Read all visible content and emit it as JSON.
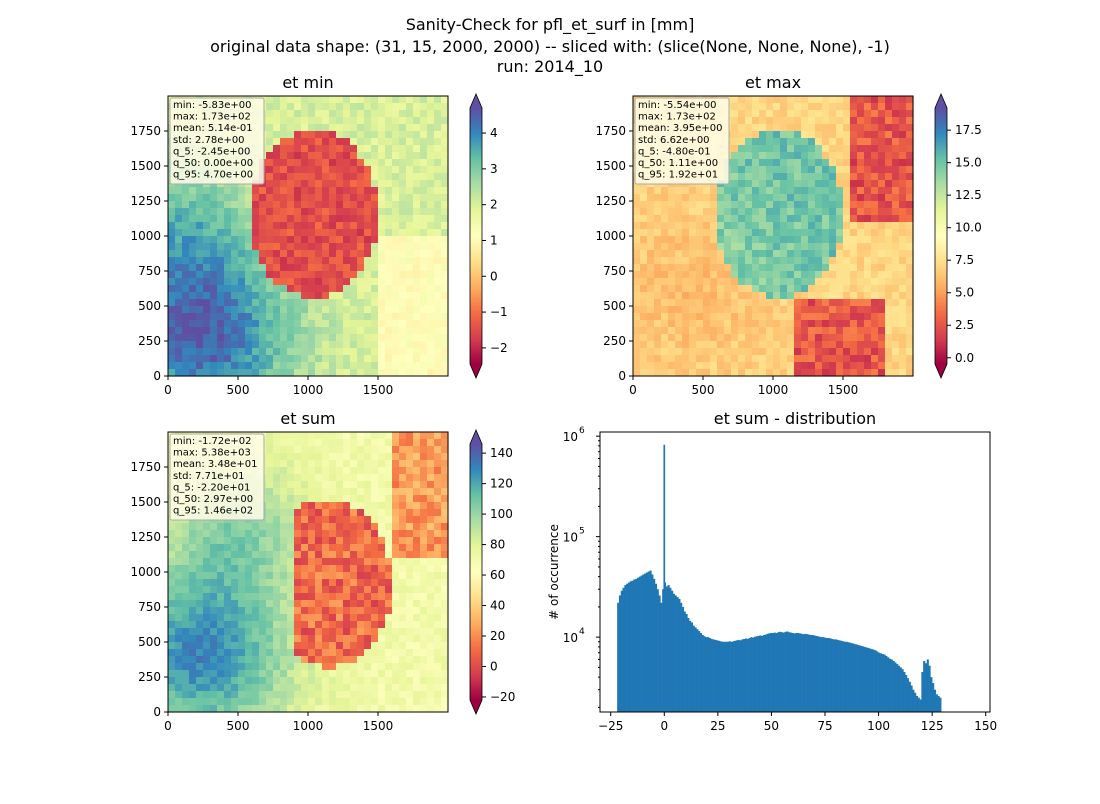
{
  "figure": {
    "title_lines": [
      "Sanity-Check for pfl_et_surf in [mm]",
      "original data shape: (31, 15, 2000, 2000) -- sliced with: (slice(None, None, None), -1)",
      "run: 2014_10"
    ]
  },
  "colors": {
    "spectral": [
      "#9e0142",
      "#d53e4f",
      "#f46d43",
      "#fdae61",
      "#fee08b",
      "#ffffbf",
      "#e6f598",
      "#abdda4",
      "#66c2a5",
      "#3288bd",
      "#5e4fa2"
    ],
    "hist_bar": "#1f77b4"
  },
  "chart_data": [
    {
      "type": "heatmap",
      "title": "et min",
      "colormap": "Spectral",
      "x_ticks": [
        "0",
        "500",
        "1000",
        "1500"
      ],
      "y_ticks": [
        "0",
        "250",
        "500",
        "750",
        "1000",
        "1250",
        "1500",
        "1750"
      ],
      "xlim": [
        0,
        2000
      ],
      "ylim": [
        0,
        2000
      ],
      "colorbar_range": [
        -2.45,
        4.7
      ],
      "colorbar_ticks": [
        "4",
        "3",
        "2",
        "1",
        "0",
        "−1",
        "−2"
      ],
      "colorbar_values": [
        4,
        3,
        2,
        1,
        0,
        -1,
        -2
      ],
      "stats": [
        "min: -5.83e+00",
        "max: 1.73e+02",
        "mean: 5.14e-01",
        "std: 2.78e+00",
        "q_5: -2.45e+00",
        "q_50: 0.00e+00",
        "q_95: 4.70e+00"
      ]
    },
    {
      "type": "heatmap",
      "title": "et max",
      "colormap": "Spectral",
      "x_ticks": [
        "0",
        "500",
        "1000",
        "1500"
      ],
      "y_ticks": [
        "0",
        "250",
        "500",
        "750",
        "1000",
        "1250",
        "1500",
        "1750"
      ],
      "xlim": [
        0,
        2000
      ],
      "ylim": [
        0,
        2000
      ],
      "colorbar_range": [
        -0.48,
        19.2
      ],
      "colorbar_ticks": [
        "17.5",
        "15.0",
        "12.5",
        "10.0",
        "7.5",
        "5.0",
        "2.5",
        "0.0"
      ],
      "colorbar_values": [
        17.5,
        15,
        12.5,
        10,
        7.5,
        5,
        2.5,
        0
      ],
      "stats": [
        "min: -5.54e+00",
        "max: 1.73e+02",
        "mean: 3.95e+00",
        "std: 6.62e+00",
        "q_5: -4.80e-01",
        "q_50: 1.11e+00",
        "q_95: 1.92e+01"
      ]
    },
    {
      "type": "heatmap",
      "title": "et sum",
      "colormap": "Spectral",
      "x_ticks": [
        "0",
        "500",
        "1000",
        "1500"
      ],
      "y_ticks": [
        "0",
        "250",
        "500",
        "750",
        "1000",
        "1250",
        "1500",
        "1750"
      ],
      "xlim": [
        0,
        2000
      ],
      "ylim": [
        0,
        2000
      ],
      "colorbar_range": [
        -22.0,
        146.0
      ],
      "colorbar_ticks": [
        "140",
        "120",
        "100",
        "80",
        "60",
        "40",
        "20",
        "0",
        "−20"
      ],
      "colorbar_values": [
        140,
        120,
        100,
        80,
        60,
        40,
        20,
        0,
        -20
      ],
      "stats": [
        "min: -1.72e+02",
        "max: 5.38e+03",
        "mean: 3.48e+01",
        "std: 7.71e+01",
        "q_5: -2.20e+01",
        "q_50: 2.97e+00",
        "q_95: 1.46e+02"
      ]
    },
    {
      "type": "bar",
      "title": "et sum - distribution",
      "ylabel": "# of occurrence",
      "yscale": "log",
      "ylim": [
        1800,
        1100000
      ],
      "xlim": [
        -30,
        152
      ],
      "x_ticks": [
        "−25",
        "0",
        "25",
        "50",
        "75",
        "100",
        "125",
        "150"
      ],
      "x_tick_values": [
        -25,
        0,
        25,
        50,
        75,
        100,
        125,
        150
      ],
      "y_ticks": [
        "10",
        "10",
        "10"
      ],
      "y_tick_exponents": [
        "4",
        "5",
        "6"
      ],
      "y_tick_values": [
        10000,
        100000,
        1000000
      ],
      "bin_start": -22,
      "bin_width": 0.84,
      "spike": {
        "x": 0,
        "value": 820000
      },
      "counts": [
        22000,
        26000,
        29000,
        31000,
        33000,
        34000,
        35000,
        36000,
        36500,
        37500,
        38000,
        39000,
        40000,
        41000,
        42000,
        43000,
        44000,
        45000,
        46000,
        42000,
        38000,
        34000,
        30000,
        26000,
        22000,
        30000,
        35000,
        32000,
        33000,
        31000,
        29000,
        27000,
        26000,
        25000,
        24000,
        22000,
        20000,
        18000,
        17000,
        15500,
        14500,
        14000,
        13000,
        12500,
        12000,
        11500,
        11000,
        10500,
        10200,
        10000,
        10000,
        9800,
        9600,
        9500,
        9400,
        9300,
        9200,
        9100,
        9000,
        9000,
        9000,
        9000,
        9100,
        9000,
        9100,
        9200,
        9300,
        9400,
        9300,
        9500,
        9600,
        9700,
        9600,
        9800,
        10000,
        9900,
        10100,
        10200,
        10300,
        10400,
        10300,
        10500,
        10600,
        10800,
        10900,
        11000,
        11000,
        11100,
        11000,
        11200,
        11300,
        11200,
        11100,
        11300,
        11400,
        11200,
        11100,
        11000,
        10900,
        11000,
        11000,
        10900,
        10800,
        10700,
        10800,
        10700,
        10600,
        10500,
        10500,
        10400,
        10300,
        10200,
        10100,
        10000,
        10000,
        9900,
        9800,
        9800,
        9700,
        9600,
        9500,
        9500,
        9400,
        9300,
        9200,
        9100,
        9000,
        9000,
        8900,
        8800,
        8700,
        8600,
        8500,
        8400,
        8300,
        8200,
        8100,
        8000,
        7900,
        7800,
        7700,
        7600,
        7500,
        7400,
        7200,
        7000,
        6900,
        6800,
        6700,
        6500,
        6300,
        6100,
        6000,
        5800,
        5600,
        5400,
        5200,
        5000,
        4800,
        4500,
        4200,
        3900,
        3600,
        3300,
        3000,
        2800,
        2600,
        2500,
        2400,
        4500,
        5800,
        5500,
        6000,
        5200,
        4000,
        3500,
        3000,
        2700,
        2600,
        2500
      ]
    }
  ]
}
